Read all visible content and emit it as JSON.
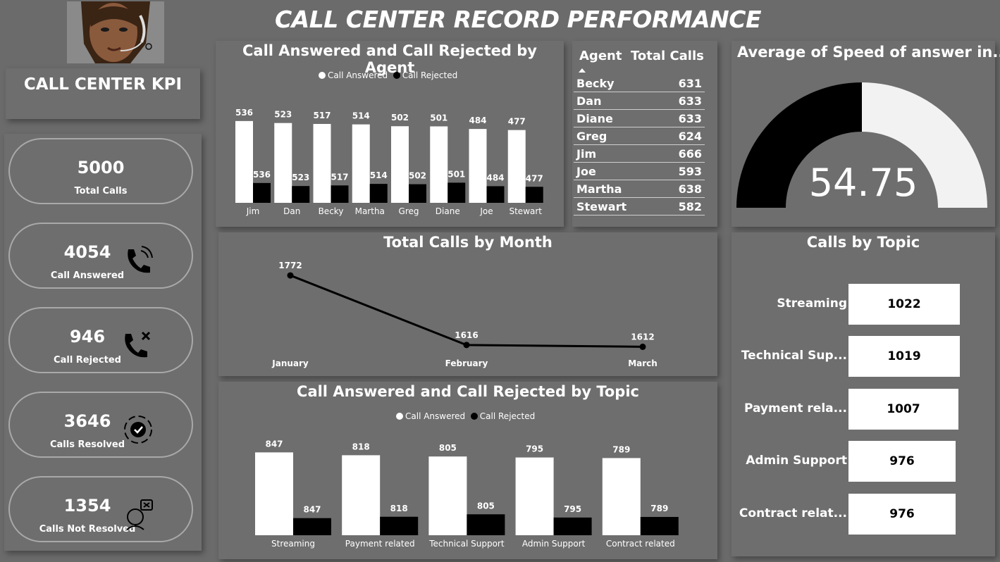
{
  "page": {
    "title": "CALL CENTER RECORD PERFORMANCE"
  },
  "kpi": {
    "title": "CALL CENTER KPI",
    "cards": [
      {
        "value": "5000",
        "label": "Total Calls",
        "icon": "none"
      },
      {
        "value": "4054",
        "label": "Call Answered",
        "icon": "phone-ringing-icon"
      },
      {
        "value": "946",
        "label": "Call Rejected",
        "icon": "phone-rejected-icon"
      },
      {
        "value": "3646",
        "label": "Calls Resolved",
        "icon": "resolved-badge-icon"
      },
      {
        "value": "1354",
        "label": "Calls Not Resolved",
        "icon": "unresolved-person-icon"
      }
    ]
  },
  "agent_chart": {
    "title": "Call Answered and  Call Rejected by Agent",
    "legend": [
      "Call Answered",
      "Call Rejected"
    ]
  },
  "agent_table": {
    "headers": [
      "Agent",
      "Total Calls"
    ],
    "rows": [
      [
        "Becky",
        "631"
      ],
      [
        "Dan",
        "633"
      ],
      [
        "Diane",
        "633"
      ],
      [
        "Greg",
        "624"
      ],
      [
        "Jim",
        "666"
      ],
      [
        "Joe",
        "593"
      ],
      [
        "Martha",
        "638"
      ],
      [
        "Stewart",
        "582"
      ]
    ]
  },
  "gauge": {
    "title": "Average of Speed of answer in...",
    "value": "54.75"
  },
  "month_chart": {
    "title": "Total Calls by Month"
  },
  "topic_chart": {
    "title": "Call Answered and  Call Rejected by Topic",
    "legend": [
      "Call Answered",
      "Call Rejected"
    ]
  },
  "topics_card": {
    "title": "Calls by Topic",
    "rows": [
      {
        "label": "Streaming",
        "value": "1022"
      },
      {
        "label": "Technical Sup...",
        "value": "1019"
      },
      {
        "label": "Payment rela...",
        "value": "1007"
      },
      {
        "label": "Admin Support",
        "value": "976"
      },
      {
        "label": "Contract relat...",
        "value": "976"
      }
    ]
  },
  "colors": {
    "background": "#6b6b6b",
    "answered": "#ffffff",
    "rejected": "#000000"
  },
  "chart_data": [
    {
      "type": "bar",
      "title": "Call Answered and  Call Rejected by Agent",
      "categories": [
        "Jim",
        "Dan",
        "Becky",
        "Martha",
        "Greg",
        "Diane",
        "Joe",
        "Stewart"
      ],
      "series": [
        {
          "name": "Call Answered",
          "values": [
            536,
            523,
            517,
            514,
            502,
            501,
            484,
            477
          ]
        },
        {
          "name": "Call Rejected",
          "values": [
            130,
            110,
            114,
            124,
            122,
            132,
            109,
            105
          ]
        }
      ],
      "data_labels": [
        536,
        523,
        517,
        514,
        502,
        501,
        484,
        477
      ],
      "ylim": [
        0,
        600
      ]
    },
    {
      "type": "line",
      "title": "Total Calls by Month",
      "categories": [
        "January",
        "February",
        "March"
      ],
      "values": [
        1772,
        1616,
        1612
      ]
    },
    {
      "type": "bar",
      "title": "Call Answered and  Call Rejected by Topic",
      "categories": [
        "Streaming",
        "Payment related",
        "Technical Support",
        "Admin Support",
        "Contract related"
      ],
      "series": [
        {
          "name": "Call Answered",
          "values": [
            847,
            818,
            805,
            795,
            789
          ]
        },
        {
          "name": "Call Rejected",
          "values": [
            175,
            189,
            214,
            181,
            187
          ]
        }
      ],
      "data_labels": [
        847,
        818,
        805,
        795,
        789
      ],
      "ylim": [
        0,
        900
      ]
    },
    {
      "type": "pie",
      "title": "Average of Speed of answer in...",
      "value": 54.75,
      "max": 109.5
    }
  ]
}
